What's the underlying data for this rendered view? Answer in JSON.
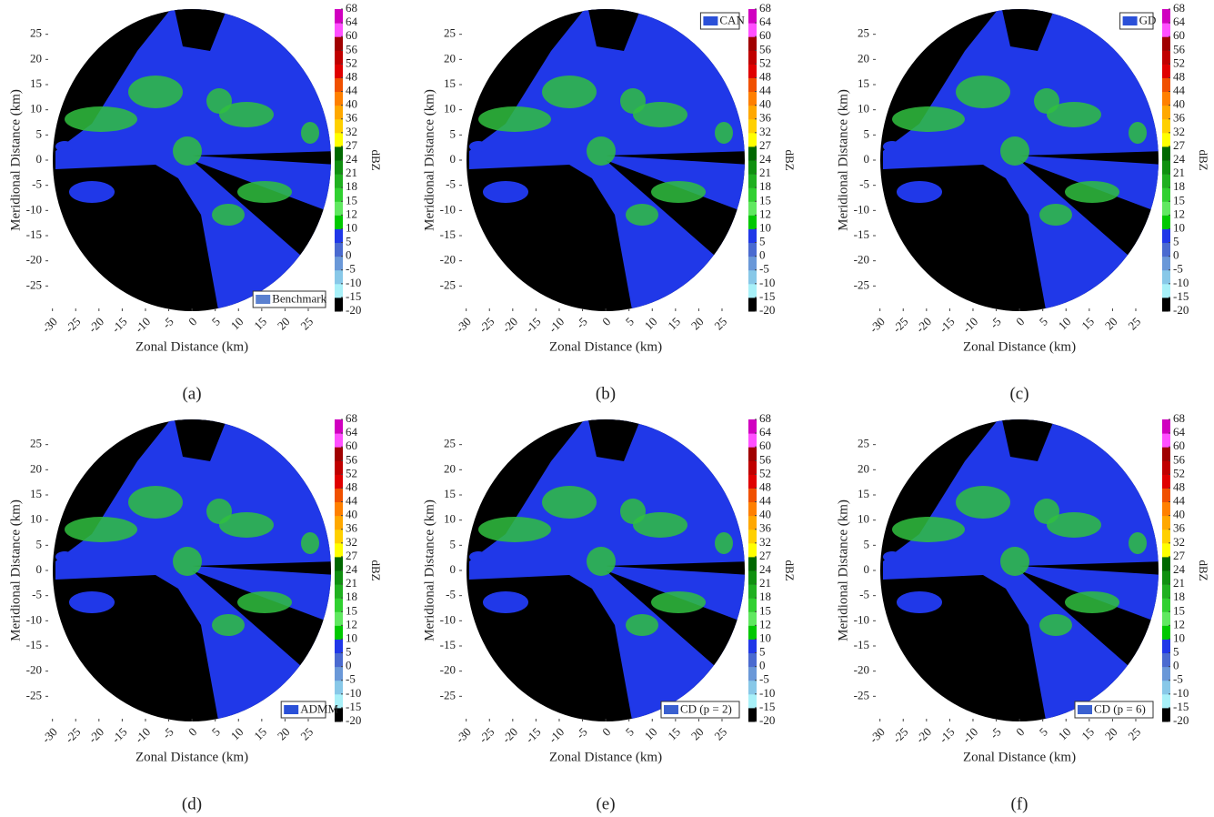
{
  "chart_data": [
    {
      "type": "heatmap",
      "caption": "(a)",
      "xlabel": "Zonal Distance (km)",
      "ylabel": "Meridional Distance (km)",
      "xlim": [
        -31.5,
        29.5
      ],
      "ylim": [
        -30,
        30
      ],
      "xticks": [
        -30,
        -25,
        -20,
        -15,
        -10,
        -5,
        0,
        5,
        10,
        15,
        20,
        25
      ],
      "yticks": [
        -25,
        -20,
        -15,
        -10,
        -5,
        0,
        5,
        10,
        15,
        20,
        25
      ],
      "legend": "Benchmark",
      "legend_position": "lower right",
      "legend_color": "#5a80d0",
      "colorbar_label": "dBZ",
      "colorbar_ticks": [
        -20,
        -15,
        -10,
        -5,
        0,
        5,
        10,
        12,
        15,
        18,
        21,
        24,
        27,
        32,
        36,
        40,
        44,
        48,
        52,
        56,
        60,
        64,
        68
      ],
      "colorbar_colors": [
        "#000000",
        "#a8f0f8",
        "#88c8e8",
        "#6a98d8",
        "#4a6ad0",
        "#2038e8",
        "#00c800",
        "#60e860",
        "#30d030",
        "#20b020",
        "#109010",
        "#006800",
        "#ffff00",
        "#ffd000",
        "#ffa800",
        "#ff8000",
        "#f05000",
        "#e00000",
        "#c00000",
        "#a00000",
        "#ff50ff",
        "#d000c0"
      ]
    },
    {
      "type": "heatmap",
      "caption": "(b)",
      "xlabel": "Zonal Distance (km)",
      "ylabel": "Meridional Distance (km)",
      "xlim": [
        -31.5,
        29.5
      ],
      "ylim": [
        -30,
        30
      ],
      "xticks": [
        -30,
        -25,
        -20,
        -15,
        -10,
        -5,
        0,
        5,
        10,
        15,
        20,
        25
      ],
      "yticks": [
        -25,
        -20,
        -15,
        -10,
        -5,
        0,
        5,
        10,
        15,
        20,
        25
      ],
      "legend": "CAN",
      "legend_position": "upper right",
      "legend_color": "#2a50d8",
      "colorbar_label": "dBZ",
      "colorbar_ticks": [
        -20,
        -15,
        -10,
        -5,
        0,
        5,
        10,
        12,
        15,
        18,
        21,
        24,
        27,
        32,
        36,
        40,
        44,
        48,
        52,
        56,
        60,
        64,
        68
      ],
      "colorbar_colors": [
        "#000000",
        "#a8f0f8",
        "#88c8e8",
        "#6a98d8",
        "#4a6ad0",
        "#2038e8",
        "#00c800",
        "#60e860",
        "#30d030",
        "#20b020",
        "#109010",
        "#006800",
        "#ffff00",
        "#ffd000",
        "#ffa800",
        "#ff8000",
        "#f05000",
        "#e00000",
        "#c00000",
        "#a00000",
        "#ff50ff",
        "#d000c0"
      ]
    },
    {
      "type": "heatmap",
      "caption": "(c)",
      "xlabel": "Zonal Distance (km)",
      "ylabel": "Meridional Distance (km)",
      "xlim": [
        -31.5,
        29.5
      ],
      "ylim": [
        -30,
        30
      ],
      "xticks": [
        -30,
        -25,
        -20,
        -15,
        -10,
        -5,
        0,
        5,
        10,
        15,
        20,
        25
      ],
      "yticks": [
        -25,
        -20,
        -15,
        -10,
        -5,
        0,
        5,
        10,
        15,
        20,
        25
      ],
      "legend": "GD",
      "legend_position": "upper right",
      "legend_color": "#2a50d8",
      "colorbar_label": "dBZ",
      "colorbar_ticks": [
        -20,
        -15,
        -10,
        -5,
        0,
        5,
        10,
        12,
        15,
        18,
        21,
        24,
        27,
        32,
        36,
        40,
        44,
        48,
        52,
        56,
        60,
        64,
        68
      ],
      "colorbar_colors": [
        "#000000",
        "#a8f0f8",
        "#88c8e8",
        "#6a98d8",
        "#4a6ad0",
        "#2038e8",
        "#00c800",
        "#60e860",
        "#30d030",
        "#20b020",
        "#109010",
        "#006800",
        "#ffff00",
        "#ffd000",
        "#ffa800",
        "#ff8000",
        "#f05000",
        "#e00000",
        "#c00000",
        "#a00000",
        "#ff50ff",
        "#d000c0"
      ]
    },
    {
      "type": "heatmap",
      "caption": "(d)",
      "xlabel": "Zonal Distance (km)",
      "ylabel": "Meridional Distance (km)",
      "xlim": [
        -31.5,
        29.5
      ],
      "ylim": [
        -30,
        30
      ],
      "xticks": [
        -30,
        -25,
        -20,
        -15,
        -10,
        -5,
        0,
        5,
        10,
        15,
        20,
        25
      ],
      "yticks": [
        -25,
        -20,
        -15,
        -10,
        -5,
        0,
        5,
        10,
        15,
        20,
        25
      ],
      "legend": "ADMM",
      "legend_position": "lower right",
      "legend_color": "#2a50d8",
      "colorbar_label": "dBZ",
      "colorbar_ticks": [
        -20,
        -15,
        -10,
        -5,
        0,
        5,
        10,
        12,
        15,
        18,
        21,
        24,
        27,
        32,
        36,
        40,
        44,
        48,
        52,
        56,
        60,
        64,
        68
      ],
      "colorbar_colors": [
        "#000000",
        "#a8f0f8",
        "#88c8e8",
        "#6a98d8",
        "#4a6ad0",
        "#2038e8",
        "#00c800",
        "#60e860",
        "#30d030",
        "#20b020",
        "#109010",
        "#006800",
        "#ffff00",
        "#ffd000",
        "#ffa800",
        "#ff8000",
        "#f05000",
        "#e00000",
        "#c00000",
        "#a00000",
        "#ff50ff",
        "#d000c0"
      ]
    },
    {
      "type": "heatmap",
      "caption": "(e)",
      "xlabel": "Zonal Distance (km)",
      "ylabel": "Meridional Distance (km)",
      "xlim": [
        -31.5,
        29.5
      ],
      "ylim": [
        -30,
        30
      ],
      "xticks": [
        -30,
        -25,
        -20,
        -15,
        -10,
        -5,
        0,
        5,
        10,
        15,
        20,
        25
      ],
      "yticks": [
        -25,
        -20,
        -15,
        -10,
        -5,
        0,
        5,
        10,
        15,
        20,
        25
      ],
      "legend": "CD (p = 2)",
      "legend_position": "lower right",
      "legend_color": "#3a60d0",
      "colorbar_label": "dBZ",
      "colorbar_ticks": [
        -20,
        -15,
        -10,
        -5,
        0,
        5,
        10,
        12,
        15,
        18,
        21,
        24,
        27,
        32,
        36,
        40,
        44,
        48,
        52,
        56,
        60,
        64,
        68
      ],
      "colorbar_colors": [
        "#000000",
        "#a8f0f8",
        "#88c8e8",
        "#6a98d8",
        "#4a6ad0",
        "#2038e8",
        "#00c800",
        "#60e860",
        "#30d030",
        "#20b020",
        "#109010",
        "#006800",
        "#ffff00",
        "#ffd000",
        "#ffa800",
        "#ff8000",
        "#f05000",
        "#e00000",
        "#c00000",
        "#a00000",
        "#ff50ff",
        "#d000c0"
      ]
    },
    {
      "type": "heatmap",
      "caption": "(f)",
      "xlabel": "Zonal Distance (km)",
      "ylabel": "Meridional Distance (km)",
      "xlim": [
        -31.5,
        29.5
      ],
      "ylim": [
        -30,
        30
      ],
      "xticks": [
        -30,
        -25,
        -20,
        -15,
        -10,
        -5,
        0,
        5,
        10,
        15,
        20,
        25
      ],
      "yticks": [
        -25,
        -20,
        -15,
        -10,
        -5,
        0,
        5,
        10,
        15,
        20,
        25
      ],
      "legend": "CD (p = 6)",
      "legend_position": "lower right",
      "legend_color": "#3a60d0",
      "colorbar_label": "dBZ",
      "colorbar_ticks": [
        -20,
        -15,
        -10,
        -5,
        0,
        5,
        10,
        12,
        15,
        18,
        21,
        24,
        27,
        32,
        36,
        40,
        44,
        48,
        52,
        56,
        60,
        64,
        68
      ],
      "colorbar_colors": [
        "#000000",
        "#a8f0f8",
        "#88c8e8",
        "#6a98d8",
        "#4a6ad0",
        "#2038e8",
        "#00c800",
        "#60e860",
        "#30d030",
        "#20b020",
        "#109010",
        "#006800",
        "#ffff00",
        "#ffd000",
        "#ffa800",
        "#ff8000",
        "#f05000",
        "#e00000",
        "#c00000",
        "#a00000",
        "#ff50ff",
        "#d000c0"
      ]
    }
  ]
}
